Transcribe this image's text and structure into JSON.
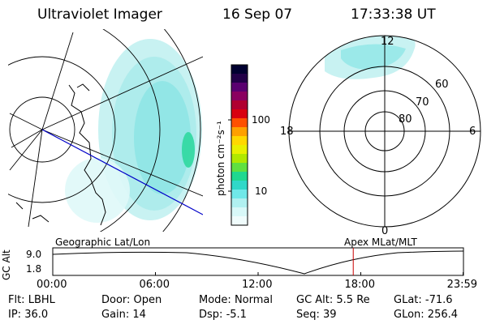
{
  "header": {
    "title": "Ultraviolet Imager",
    "date": "16 Sep 07",
    "time": "17:33:38 UT"
  },
  "left_panel": {
    "label": "Geographic Lat/Lon"
  },
  "colorbar": {
    "unit_label": "photon cm⁻²s⁻¹",
    "ticks": [
      "100",
      "10"
    ],
    "colors": [
      "#000030",
      "#220048",
      "#5a0070",
      "#8a0060",
      "#b00030",
      "#d80010",
      "#ff5000",
      "#ffa000",
      "#ffd800",
      "#e8f000",
      "#b0e800",
      "#60e040",
      "#20d890",
      "#30d8c8",
      "#70e8e8",
      "#b0f0f0",
      "#d8f8f8",
      "#f0fcfc"
    ]
  },
  "right_panel": {
    "label": "Apex MLat/MLT",
    "mlt_labels": {
      "top": "12",
      "left": "18",
      "right": "6",
      "bottom": "0"
    },
    "mlat_labels": [
      "60",
      "70",
      "80"
    ]
  },
  "altitude_plot": {
    "ylabel": "GC Alt",
    "yticks": [
      "9.0",
      "1.8"
    ],
    "xticks": [
      "00:00",
      "06:00",
      "12:00",
      "18:00",
      "23:59"
    ],
    "cursor_time_hours": 17.56
  },
  "status": {
    "row1": [
      {
        "key": "Flt:",
        "value": "LBHL"
      },
      {
        "key": "Door:",
        "value": "Open"
      },
      {
        "key": "Mode:",
        "value": "Normal"
      },
      {
        "key": "GC Alt:",
        "value": "5.5 Re"
      },
      {
        "key": "GLat:",
        "value": "-71.6"
      }
    ],
    "row2": [
      {
        "key": "IP:",
        "value": "36.0"
      },
      {
        "key": "Gain:",
        "value": "14"
      },
      {
        "key": "Dsp:",
        "value": "-5.1"
      },
      {
        "key": "Seq:",
        "value": "39"
      },
      {
        "key": "GLon:",
        "value": "256.4"
      }
    ]
  }
}
